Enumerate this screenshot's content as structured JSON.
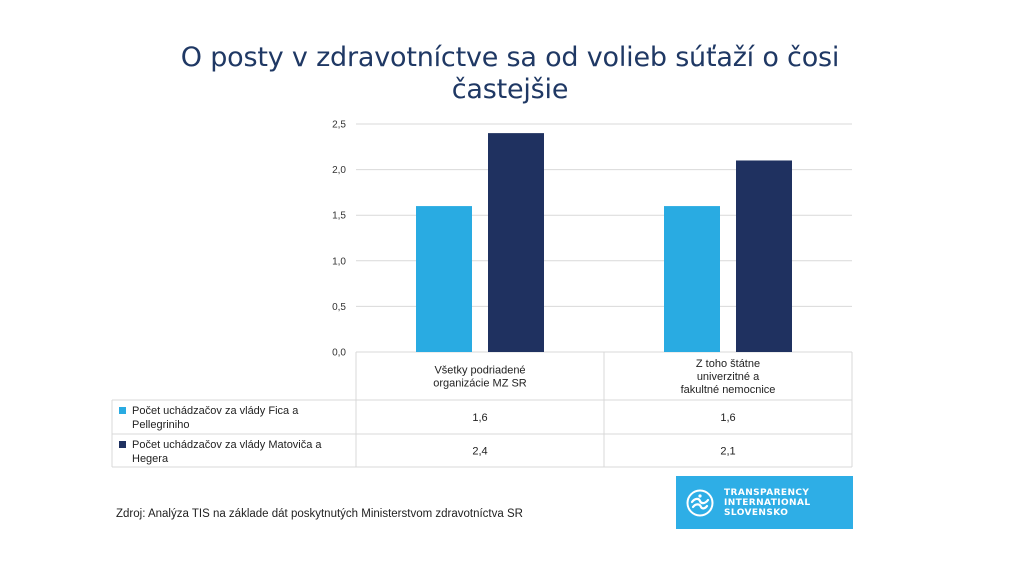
{
  "title_lines": [
    "O posty v zdravotníctve sa od volieb súťaží o čosi",
    "častejšie"
  ],
  "colors": {
    "title": "#1f3864",
    "series_light": "#29abe2",
    "series_dark": "#1f3160",
    "grid": "#d9d9d9",
    "logo_bg": "#2eaee6"
  },
  "chart_data": {
    "type": "bar",
    "title": "O posty v zdravotníctve sa od volieb súťaží o čosi častejšie",
    "categories": [
      [
        "Všetky podriadené",
        "organizácie MZ SR"
      ],
      [
        "Z toho štátne",
        "univerzitné a",
        "fakultné nemocnice"
      ]
    ],
    "series": [
      {
        "name_lines": [
          "Počet uchádzačov za vlády Fica a",
          "Pellegriniho"
        ],
        "values": [
          1.6,
          1.6
        ],
        "labels": [
          "1,6",
          "1,6"
        ]
      },
      {
        "name_lines": [
          "Počet uchádzačov za vlády Matoviča a",
          "Hegera"
        ],
        "values": [
          2.4,
          2.1
        ],
        "labels": [
          "2,4",
          "2,1"
        ]
      }
    ],
    "yticks": [
      0,
      0.5,
      1.0,
      1.5,
      2.0,
      2.5
    ],
    "ytick_labels": [
      "0,0",
      "0,5",
      "1,0",
      "1,5",
      "2,0",
      "2,5"
    ],
    "ylim": [
      0,
      2.5
    ],
    "grid": true,
    "legend": "data-table-below"
  },
  "source": "Zdroj: Analýza TIS na základe dát poskytnutých Ministerstvom zdravotníctva SR",
  "logo": {
    "lines": [
      "TRANSPARENCY",
      "INTERNATIONAL",
      "SLOVENSKO"
    ],
    "icon": "ti-logo-icon"
  }
}
